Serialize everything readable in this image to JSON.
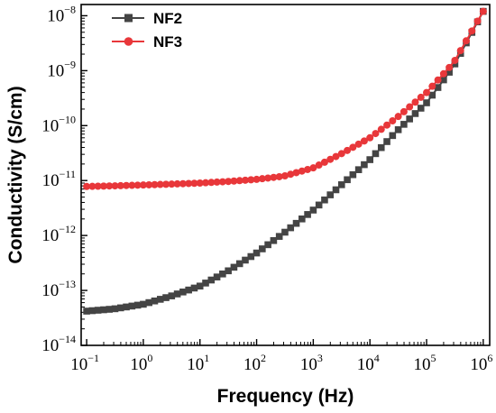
{
  "chart_data": {
    "type": "scatter",
    "xlabel": "Frequency (Hz)",
    "ylabel": "Conductivity (S/cm)",
    "x_scale": "log",
    "y_scale": "log",
    "xlim": [
      0.08,
      1300000
    ],
    "ylim": [
      1e-14,
      1.6e-08
    ],
    "x_ticks": [
      {
        "value": 0.1,
        "base": "10",
        "exp": "−1"
      },
      {
        "value": 1,
        "base": "10",
        "exp": "0"
      },
      {
        "value": 10,
        "base": "10",
        "exp": "1"
      },
      {
        "value": 100,
        "base": "10",
        "exp": "2"
      },
      {
        "value": 1000,
        "base": "10",
        "exp": "3"
      },
      {
        "value": 10000,
        "base": "10",
        "exp": "4"
      },
      {
        "value": 100000,
        "base": "10",
        "exp": "5"
      },
      {
        "value": 1000000,
        "base": "10",
        "exp": "6"
      }
    ],
    "y_ticks": [
      {
        "value": 1e-14,
        "base": "10",
        "exp": "−14"
      },
      {
        "value": 1e-13,
        "base": "10",
        "exp": "−13"
      },
      {
        "value": 1e-12,
        "base": "10",
        "exp": "−12"
      },
      {
        "value": 1e-11,
        "base": "10",
        "exp": "−11"
      },
      {
        "value": 1e-10,
        "base": "10",
        "exp": "−10"
      },
      {
        "value": 1e-09,
        "base": "10",
        "exp": "−9"
      },
      {
        "value": 1e-08,
        "base": "10",
        "exp": "−8"
      }
    ],
    "grid": false,
    "legend_position": "top-left",
    "series": [
      {
        "name": "NF2",
        "color": "#444444",
        "marker": "square",
        "points": [
          [
            0.1,
            4.2e-14
          ],
          [
            0.3,
            4.6e-14
          ],
          [
            1,
            5.6e-14
          ],
          [
            3,
            7.8e-14
          ],
          [
            10,
            1.2e-13
          ],
          [
            30,
            2.2e-13
          ],
          [
            100,
            4.8e-13
          ],
          [
            300,
            1.1e-12
          ],
          [
            1000,
            2.9e-12
          ],
          [
            3000,
            8e-12
          ],
          [
            10000,
            2.4e-11
          ],
          [
            30000,
            8e-11
          ],
          [
            100000,
            2.6e-10
          ],
          [
            300000,
            1.2e-09
          ],
          [
            1000000,
            1.2e-08
          ]
        ]
      },
      {
        "name": "NF3",
        "color": "#e8373a",
        "marker": "circle",
        "points": [
          [
            0.1,
            7.8e-12
          ],
          [
            0.3,
            8e-12
          ],
          [
            1,
            8.3e-12
          ],
          [
            3,
            8.6e-12
          ],
          [
            10,
            9e-12
          ],
          [
            30,
            9.6e-12
          ],
          [
            100,
            1.05e-11
          ],
          [
            300,
            1.2e-11
          ],
          [
            1000,
            1.7e-11
          ],
          [
            3000,
            3e-11
          ],
          [
            10000,
            6e-11
          ],
          [
            30000,
            1.4e-10
          ],
          [
            100000,
            4e-10
          ],
          [
            300000,
            1.4e-09
          ],
          [
            1000000,
            1.2e-08
          ]
        ]
      }
    ]
  }
}
